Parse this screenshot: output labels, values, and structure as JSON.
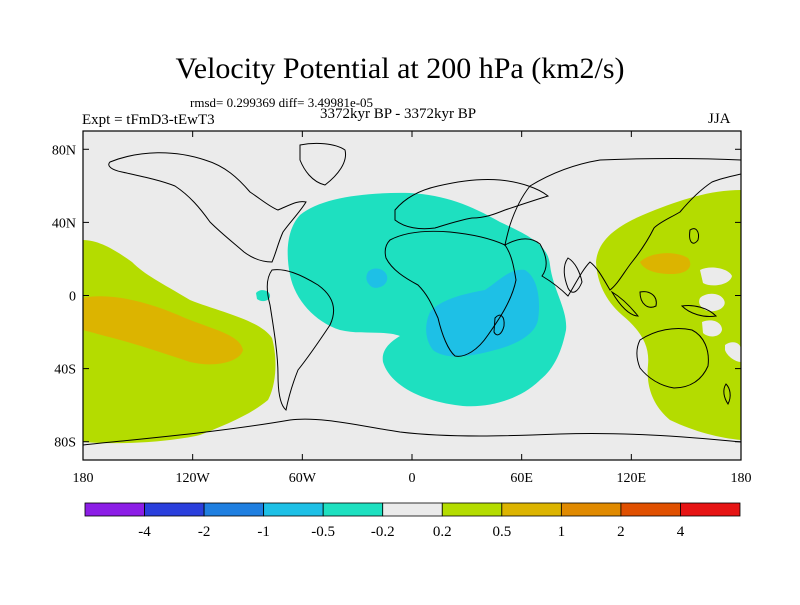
{
  "chart_data": {
    "type": "heatmap",
    "title": "Velocity Potential at 200 hPa (km2/s)",
    "stats_line": "rmsd= 0.299369 diff= 3.49981e-05",
    "left_label": "Expt = tFmD3-tEwT3",
    "center_label": "3372kyr BP - 3372kyr BP",
    "right_label": "JJA",
    "xlabel": "",
    "ylabel": "",
    "xlim": [
      -180,
      180
    ],
    "ylim": [
      -90,
      90
    ],
    "x_ticks": [
      {
        "value": -180,
        "label": "180"
      },
      {
        "value": -120,
        "label": "120W"
      },
      {
        "value": -60,
        "label": "60W"
      },
      {
        "value": 0,
        "label": "0"
      },
      {
        "value": 60,
        "label": "60E"
      },
      {
        "value": 120,
        "label": "120E"
      },
      {
        "value": 180,
        "label": "180"
      }
    ],
    "y_ticks": [
      {
        "value": 80,
        "label": "80N"
      },
      {
        "value": 40,
        "label": "40N"
      },
      {
        "value": 0,
        "label": "0"
      },
      {
        "value": -40,
        "label": "40S"
      },
      {
        "value": -80,
        "label": "80S"
      }
    ],
    "colorbar": {
      "colors": [
        "#8c1ee6",
        "#2a3fdc",
        "#1f7fe0",
        "#1ec0e6",
        "#1ee0c0",
        "#ebebeb",
        "#b4dc00",
        "#dcb400",
        "#e08a00",
        "#e05000",
        "#e61414"
      ],
      "labels": [
        "-4",
        "-2",
        "-1",
        "-0.5",
        "-0.2",
        "0.2",
        "0.5",
        "1",
        "2",
        "4"
      ]
    },
    "regions": [
      {
        "name": "negative anomaly over Atlantic / Africa / Indian Ocean",
        "level": "-0.5 to -0.2",
        "lon": [
          -70,
          95
        ],
        "lat": [
          -60,
          55
        ]
      },
      {
        "name": "stronger negative anomaly over southern Africa / western Indian Ocean",
        "level": "-1 to -0.5",
        "lon": [
          10,
          70
        ],
        "lat": [
          -35,
          15
        ]
      },
      {
        "name": "positive anomaly over eastern Pacific",
        "level": "0.2 to 0.5",
        "lon": [
          -180,
          -70
        ],
        "lat": [
          -70,
          30
        ]
      },
      {
        "name": "positive anomaly over western Pacific / Maritime Continent",
        "level": "0.2 to 0.5",
        "lon": [
          100,
          180
        ],
        "lat": [
          -75,
          50
        ]
      },
      {
        "name": "stronger positive anomaly in eastern Pacific",
        "level": "0.5 to 1",
        "lon": [
          -180,
          -110
        ],
        "lat": [
          -35,
          0
        ]
      },
      {
        "name": "stronger positive anomaly in western Pacific",
        "level": "0.5 to 1",
        "lon": [
          130,
          155
        ],
        "lat": [
          10,
          25
        ]
      }
    ]
  }
}
